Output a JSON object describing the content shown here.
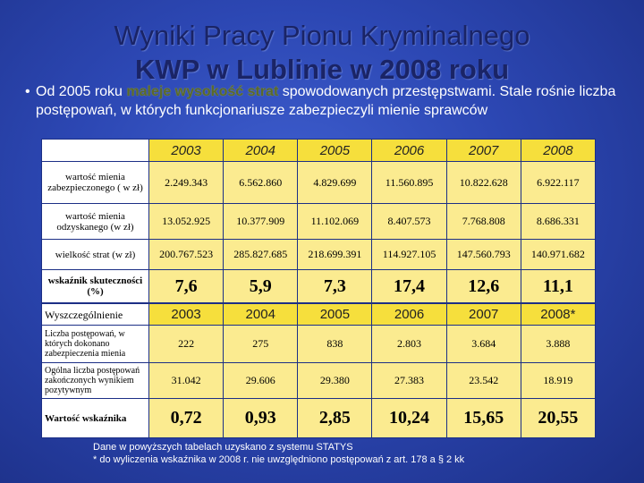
{
  "title": {
    "line1": "Wyniki Pracy Pionu Kryminalnego",
    "line2": "KWP w Lublinie w 2008 roku"
  },
  "bullet": {
    "pre": "Od 2005 roku ",
    "highlight": "maleje wysokość strat",
    "post": " spowodowanych przestępstwami. Stale rośnie liczba postępowań, w których funkcjonariusze zabezpieczyli mienie sprawców"
  },
  "table1": {
    "years": [
      "2003",
      "2004",
      "2005",
      "2006",
      "2007",
      "2008"
    ],
    "rows": [
      {
        "label": "wartość mienia zabezpieczonego ( w zł)",
        "values": [
          "2.249.343",
          "6.562.860",
          "4.829.699",
          "11.560.895",
          "10.822.628",
          "6.922.117"
        ]
      },
      {
        "label": "wartość mienia odzyskanego (w zł)",
        "values": [
          "13.052.925",
          "10.377.909",
          "11.102.069",
          "8.407.573",
          "7.768.808",
          "8.686.331"
        ]
      },
      {
        "label": "wielkość strat (w zł)",
        "values": [
          "200.767.523",
          "285.827.685",
          "218.699.391",
          "114.927.105",
          "147.560.793",
          "140.971.682"
        ]
      },
      {
        "label": "wskaźnik skuteczności (%)",
        "values": [
          "7,6",
          "5,9",
          "7,3",
          "17,4",
          "12,6",
          "11,1"
        ]
      }
    ]
  },
  "table2": {
    "header_label": "Wyszczególnienie",
    "years": [
      "2003",
      "2004",
      "2005",
      "2006",
      "2007",
      "2008*"
    ],
    "rows": [
      {
        "label": "Liczba postępowań, w których dokonano zabezpieczenia mienia",
        "values": [
          "222",
          "275",
          "838",
          "2.803",
          "3.684",
          "3.888"
        ]
      },
      {
        "label": "Ogólna liczba postępowań zakończonych wynikiem pozytywnym",
        "values": [
          "31.042",
          "29.606",
          "29.380",
          "27.383",
          "23.542",
          "18.919"
        ]
      },
      {
        "label": "Wartość wskaźnika",
        "values": [
          "0,72",
          "0,93",
          "2,85",
          "10,24",
          "15,65",
          "20,55"
        ]
      }
    ]
  },
  "footnote": {
    "line1": "Dane w powyższych tabelach uzyskano z systemu STATYS",
    "line2": "* do wyliczenia wskaźnika w 2008 r. nie uwzględniono postępowań z art. 178 a § 2 kk"
  },
  "colors": {
    "background": "#2c47b3",
    "title": "#1a2466",
    "header_cell": "#f6df3c",
    "value_cell": "#fbeb90"
  }
}
